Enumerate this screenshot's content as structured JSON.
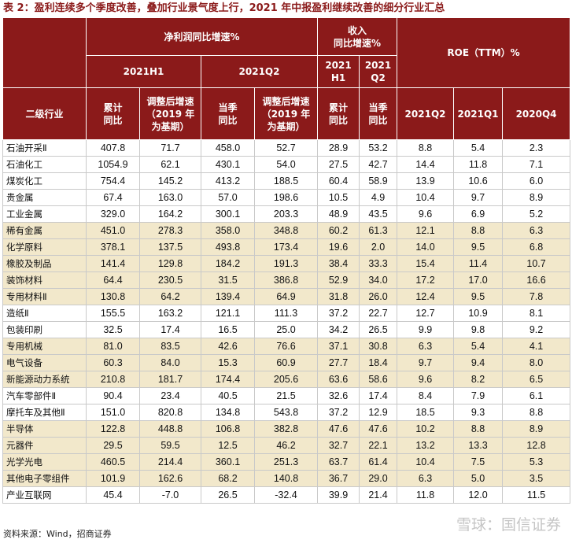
{
  "title": "表 2：盈利连续多个季度改善，叠加行业景气度上行，2021 年中报盈利继续改善的细分行业汇总",
  "header": {
    "net_profit": "净利润同比增速%",
    "revenue_line1": "收入",
    "revenue_line2": "同比增速%",
    "roe": "ROE（TTM）%",
    "h1_2021": "2021H1",
    "q2_2021": "2021Q2",
    "rev_h1_l1": "2021",
    "rev_h1_l2": "H1",
    "rev_q2_l1": "2021",
    "rev_q2_l2": "Q2",
    "industry": "二级行业",
    "cum_l1": "累计",
    "cum_l2": "同比",
    "adj_l1": "调整后增速",
    "adj_l2": "（2019 年",
    "adj_l3": "为基期）",
    "cur_l1": "当季",
    "cur_l2": "同比",
    "adj2_l1": "调整后增速",
    "adj2_l2": "（2019 年",
    "adj2_l3": "为基期）",
    "rcum_l1": "累计",
    "rcum_l2": "同比",
    "rcur_l1": "当季",
    "rcur_l2": "同比",
    "roe_q2": "2021Q2",
    "roe_q1": "2021Q1",
    "roe_q4": "2020Q4"
  },
  "rows": [
    {
      "name": "石油开采Ⅱ",
      "v": [
        "407.8",
        "71.7",
        "458.0",
        "52.7",
        "28.9",
        "53.2",
        "8.8",
        "5.4",
        "2.3"
      ],
      "hl": false
    },
    {
      "name": "石油化工",
      "v": [
        "1054.9",
        "62.1",
        "430.1",
        "54.0",
        "27.5",
        "42.7",
        "14.4",
        "11.8",
        "7.1"
      ],
      "hl": false
    },
    {
      "name": "煤炭化工",
      "v": [
        "754.4",
        "145.2",
        "413.2",
        "188.5",
        "60.4",
        "58.9",
        "13.9",
        "10.6",
        "6.0"
      ],
      "hl": false
    },
    {
      "name": "贵金属",
      "v": [
        "67.4",
        "163.0",
        "57.0",
        "198.6",
        "10.5",
        "4.9",
        "10.4",
        "9.7",
        "8.9"
      ],
      "hl": false
    },
    {
      "name": "工业金属",
      "v": [
        "329.0",
        "164.2",
        "300.1",
        "203.3",
        "48.9",
        "43.5",
        "9.6",
        "6.9",
        "5.2"
      ],
      "hl": false
    },
    {
      "name": "稀有金属",
      "v": [
        "451.0",
        "278.3",
        "358.0",
        "348.8",
        "60.2",
        "61.3",
        "12.1",
        "8.8",
        "6.3"
      ],
      "hl": true
    },
    {
      "name": "化学原料",
      "v": [
        "378.1",
        "137.5",
        "493.8",
        "173.4",
        "19.6",
        "2.0",
        "14.0",
        "9.5",
        "6.8"
      ],
      "hl": true
    },
    {
      "name": "橡胶及制品",
      "v": [
        "141.4",
        "129.8",
        "184.2",
        "191.3",
        "38.4",
        "33.3",
        "15.4",
        "11.4",
        "10.7"
      ],
      "hl": true
    },
    {
      "name": "装饰材料",
      "v": [
        "64.4",
        "230.5",
        "31.5",
        "386.8",
        "52.9",
        "34.0",
        "17.2",
        "17.0",
        "16.6"
      ],
      "hl": true
    },
    {
      "name": "专用材料Ⅱ",
      "v": [
        "130.8",
        "64.2",
        "139.4",
        "64.9",
        "31.8",
        "26.0",
        "12.4",
        "9.5",
        "7.8"
      ],
      "hl": true
    },
    {
      "name": "造纸Ⅱ",
      "v": [
        "155.5",
        "163.2",
        "121.1",
        "111.3",
        "37.2",
        "22.7",
        "12.7",
        "10.9",
        "8.1"
      ],
      "hl": false
    },
    {
      "name": "包装印刷",
      "v": [
        "32.5",
        "17.4",
        "16.5",
        "25.0",
        "34.2",
        "26.5",
        "9.9",
        "9.8",
        "9.2"
      ],
      "hl": false
    },
    {
      "name": "专用机械",
      "v": [
        "81.0",
        "83.5",
        "42.6",
        "76.6",
        "37.1",
        "30.8",
        "6.3",
        "5.4",
        "4.1"
      ],
      "hl": true
    },
    {
      "name": "电气设备",
      "v": [
        "60.3",
        "84.0",
        "15.3",
        "60.9",
        "27.7",
        "18.4",
        "9.7",
        "9.4",
        "8.0"
      ],
      "hl": true
    },
    {
      "name": "新能源动力系统",
      "v": [
        "210.8",
        "181.7",
        "174.4",
        "205.6",
        "63.6",
        "58.6",
        "9.6",
        "8.2",
        "6.5"
      ],
      "hl": true
    },
    {
      "name": "汽车零部件Ⅱ",
      "v": [
        "90.4",
        "23.4",
        "40.5",
        "21.5",
        "32.6",
        "17.4",
        "8.4",
        "7.9",
        "6.1"
      ],
      "hl": false
    },
    {
      "name": "摩托车及其他Ⅱ",
      "v": [
        "151.0",
        "820.8",
        "134.8",
        "543.8",
        "37.2",
        "12.9",
        "18.5",
        "9.3",
        "8.8"
      ],
      "hl": false
    },
    {
      "name": "半导体",
      "v": [
        "122.8",
        "448.8",
        "106.8",
        "382.8",
        "47.6",
        "47.6",
        "10.2",
        "8.8",
        "8.9"
      ],
      "hl": true
    },
    {
      "name": "元器件",
      "v": [
        "29.5",
        "59.5",
        "12.5",
        "46.2",
        "32.7",
        "22.1",
        "13.2",
        "13.3",
        "12.8"
      ],
      "hl": true
    },
    {
      "name": "光学光电",
      "v": [
        "460.5",
        "214.4",
        "360.1",
        "251.3",
        "63.7",
        "61.4",
        "10.4",
        "7.5",
        "5.3"
      ],
      "hl": true
    },
    {
      "name": "其他电子零组件",
      "v": [
        "101.9",
        "162.6",
        "68.2",
        "140.8",
        "36.7",
        "29.0",
        "6.3",
        "5.0",
        "3.5"
      ],
      "hl": true
    },
    {
      "name": "产业互联网",
      "v": [
        "45.4",
        "-7.0",
        "26.5",
        "-32.4",
        "39.9",
        "21.4",
        "11.8",
        "12.0",
        "11.5"
      ],
      "hl": false
    }
  ],
  "source": "资料来源：Wind，招商证券",
  "watermark": "雪球：国信证券"
}
